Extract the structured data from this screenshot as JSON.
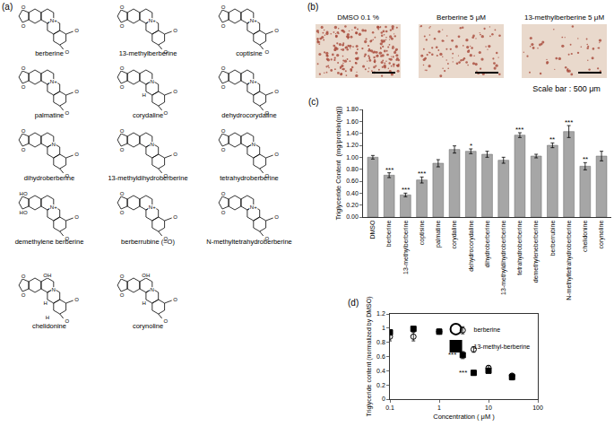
{
  "panels": {
    "a": {
      "label": "(a)",
      "compounds": [
        {
          "name": "berberine",
          "atoms": [
            "O",
            "O",
            "N+",
            "O",
            "O"
          ]
        },
        {
          "name": "13-methylberberine",
          "atoms": [
            "O",
            "O",
            "N+",
            "O",
            "O"
          ]
        },
        {
          "name": "coptisine",
          "atoms": [
            "O",
            "O",
            "N+",
            "O",
            "O"
          ]
        },
        {
          "name": "palmatine",
          "atoms": [
            "O",
            "O",
            "N+",
            "O",
            "O"
          ]
        },
        {
          "name": "corydaline",
          "atoms": [
            "O",
            "O",
            "N",
            "O",
            "O",
            "H"
          ]
        },
        {
          "name": "dehydrocorydaline",
          "atoms": [
            "O",
            "O",
            "N+",
            "O",
            "O"
          ]
        },
        {
          "name": "dihydroberberine",
          "atoms": [
            "O",
            "O",
            "N",
            "O",
            "O"
          ]
        },
        {
          "name": "13-methyldihydroberberine",
          "atoms": [
            "O",
            "O",
            "N",
            "O",
            "O"
          ]
        },
        {
          "name": "tetrahydroberberine",
          "atoms": [
            "O",
            "O",
            "N",
            "O",
            "O"
          ]
        },
        {
          "name": "demethylene berberine",
          "atoms": [
            "HO",
            "HO",
            "N+",
            "O",
            "O"
          ]
        },
        {
          "name": "berberrubine (=O)",
          "atoms": [
            "O",
            "O",
            "N+",
            "O",
            "O"
          ]
        },
        {
          "name": "N-methyltetrahydroberberine",
          "atoms": [
            "O",
            "O",
            "N+",
            "O",
            "O"
          ]
        },
        {
          "name": "chelidonine",
          "atoms": [
            "O",
            "O",
            "N",
            "O",
            "O",
            "H",
            "OH",
            "H"
          ]
        },
        {
          "name": "corynoline",
          "atoms": [
            "O",
            "O",
            "N",
            "O",
            "O",
            "H",
            "OH"
          ]
        }
      ]
    },
    "b": {
      "label": "(b)",
      "images": [
        {
          "caption": "DMSO 0.1 %"
        },
        {
          "caption": "Berberine 5 μM"
        },
        {
          "caption": "13-methylberberine 5 μM"
        }
      ],
      "scale_bar": "Scale bar : 500 μm"
    }
  },
  "chart_data": [
    {
      "type": "bar",
      "title": "(c)",
      "y_label": "Triglyceride Content  (mg/protein(mg))",
      "categories": [
        "DMSO",
        "berberine",
        "13-methylberberine",
        "coptisine",
        "palmatine",
        "corydaline",
        "dehydrocorydaline",
        "dihydroberberine",
        "13-methyldihydroberberine",
        "tetrahydroberberine",
        "demethyleneberberine",
        "berberrubine",
        "N-methyltetrahydroberberine",
        "chelidonine",
        "corynoline"
      ],
      "values": [
        1.0,
        0.7,
        0.37,
        0.62,
        0.9,
        1.13,
        1.1,
        1.05,
        0.95,
        1.37,
        1.02,
        1.2,
        1.43,
        0.85,
        1.02
      ],
      "errors": [
        0.03,
        0.04,
        0.03,
        0.05,
        0.06,
        0.06,
        0.04,
        0.05,
        0.05,
        0.04,
        0.03,
        0.04,
        0.1,
        0.06,
        0.08
      ],
      "significance": [
        null,
        "***",
        "***",
        "***",
        null,
        null,
        "*",
        null,
        null,
        "***",
        null,
        "**",
        "***",
        "**",
        null
      ],
      "color": "#a6a6a6",
      "ylim": [
        0,
        1.8
      ],
      "yticks": [
        {
          "value": 0,
          "label": "0.00"
        },
        {
          "value": 0.2,
          "label": "0.20"
        },
        {
          "value": 0.4,
          "label": "0.40"
        },
        {
          "value": 0.6,
          "label": "0.60"
        },
        {
          "value": 0.8,
          "label": "0.80"
        },
        {
          "value": 1.0,
          "label": "1.00"
        },
        {
          "value": 1.2,
          "label": "1.20"
        },
        {
          "value": 1.4,
          "label": "1.40"
        },
        {
          "value": 1.6,
          "label": "1.60"
        },
        {
          "value": 1.8,
          "label": "1.80"
        }
      ],
      "grid": false
    },
    {
      "type": "scatter",
      "title": "(d)",
      "x_label": "Concentration ( μM )",
      "y_label": "Triglyceride content (normalized by DMSO)",
      "x": [
        0.1,
        0.3,
        1,
        3,
        5,
        10,
        30
      ],
      "series": [
        {
          "name": "berberine",
          "color": "#000000",
          "marker": "circle-open",
          "values": [
            0.88,
            0.88,
            0.95,
            0.97,
            0.7,
            0.44,
            0.33
          ],
          "errors": [
            0.06,
            0.06,
            0.03,
            0.05,
            0.04,
            0.03,
            0.03
          ]
        },
        {
          "name": "13-methyl-berberine",
          "color": "#000000",
          "marker": "square",
          "values": [
            0.94,
            0.99,
            0.95,
            0.62,
            0.37,
            0.4,
            0.31
          ],
          "errors": [
            0.03,
            0.03,
            0.03,
            0.05,
            0.03,
            0.03,
            0.04
          ]
        }
      ],
      "annotations": [
        {
          "x": 3,
          "y": 0.62,
          "text": "***"
        },
        {
          "x": 5,
          "y": 0.37,
          "text": "***"
        }
      ],
      "log": "x",
      "xlim": [
        0.1,
        100
      ],
      "xticks": [
        0.1,
        1,
        10,
        100
      ],
      "ylim": [
        0,
        1.2
      ],
      "yticks": [
        0,
        0.2,
        0.4,
        0.6,
        0.8,
        1,
        1.2
      ],
      "legend": "top right",
      "grid": false
    }
  ]
}
